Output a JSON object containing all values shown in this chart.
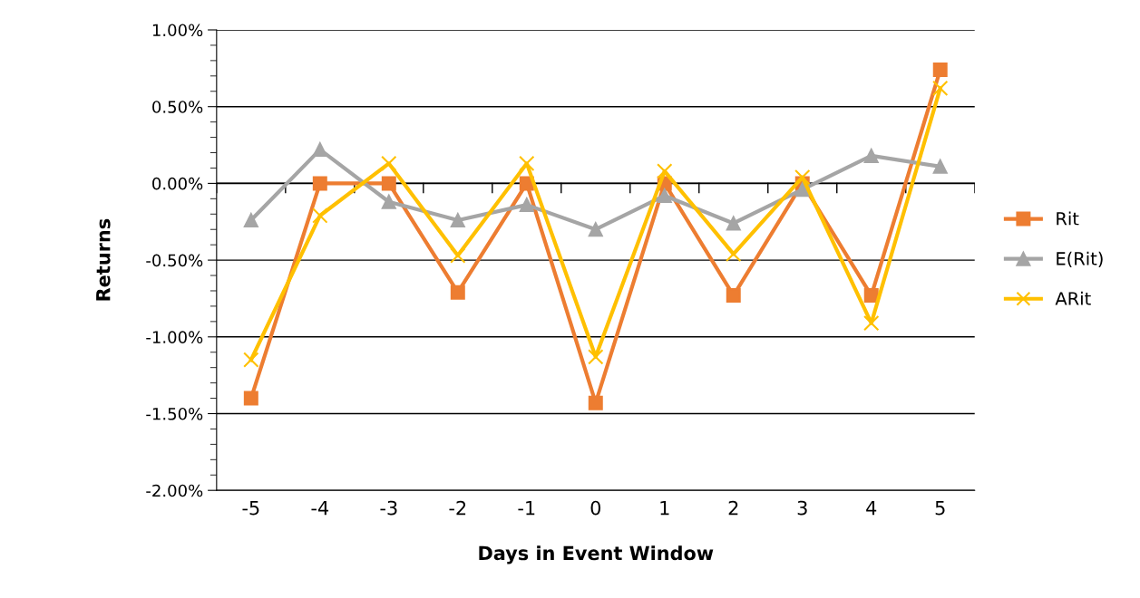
{
  "chart_data": {
    "type": "line",
    "xlabel": "Days in Event Window",
    "ylabel": "Returns",
    "categories": [
      "-5",
      "-4",
      "-3",
      "-2",
      "-1",
      "0",
      "1",
      "2",
      "3",
      "4",
      "5"
    ],
    "series": [
      {
        "name": "Rit",
        "color": "#ed7d31",
        "marker": "square",
        "values": [
          -1.4,
          0.0,
          0.0,
          -0.71,
          0.0,
          -1.43,
          0.0,
          -0.73,
          0.0,
          -0.73,
          0.74
        ]
      },
      {
        "name": "E(Rit)",
        "color": "#a5a5a5",
        "marker": "triangle",
        "values": [
          -0.24,
          0.22,
          -0.12,
          -0.24,
          -0.14,
          -0.3,
          -0.08,
          -0.26,
          -0.04,
          0.18,
          0.11
        ]
      },
      {
        "name": "ARit",
        "color": "#ffc000",
        "marker": "cross",
        "values": [
          -1.15,
          -0.21,
          0.13,
          -0.47,
          0.13,
          -1.13,
          0.08,
          -0.46,
          0.04,
          -0.91,
          0.62
        ]
      }
    ],
    "ylim": [
      -2,
      1
    ],
    "yticks": [
      {
        "value": -2,
        "label": "-2.00%"
      },
      {
        "value": -1.5,
        "label": "-1.50%"
      },
      {
        "value": -1,
        "label": "-1.00%"
      },
      {
        "value": -0.5,
        "label": "-0.50%"
      },
      {
        "value": 0,
        "label": "0.00%"
      },
      {
        "value": 0.5,
        "label": "0.50%"
      },
      {
        "value": 1,
        "label": "1.00%"
      }
    ],
    "grid": "y",
    "legend": "right",
    "line_style": "solid"
  }
}
